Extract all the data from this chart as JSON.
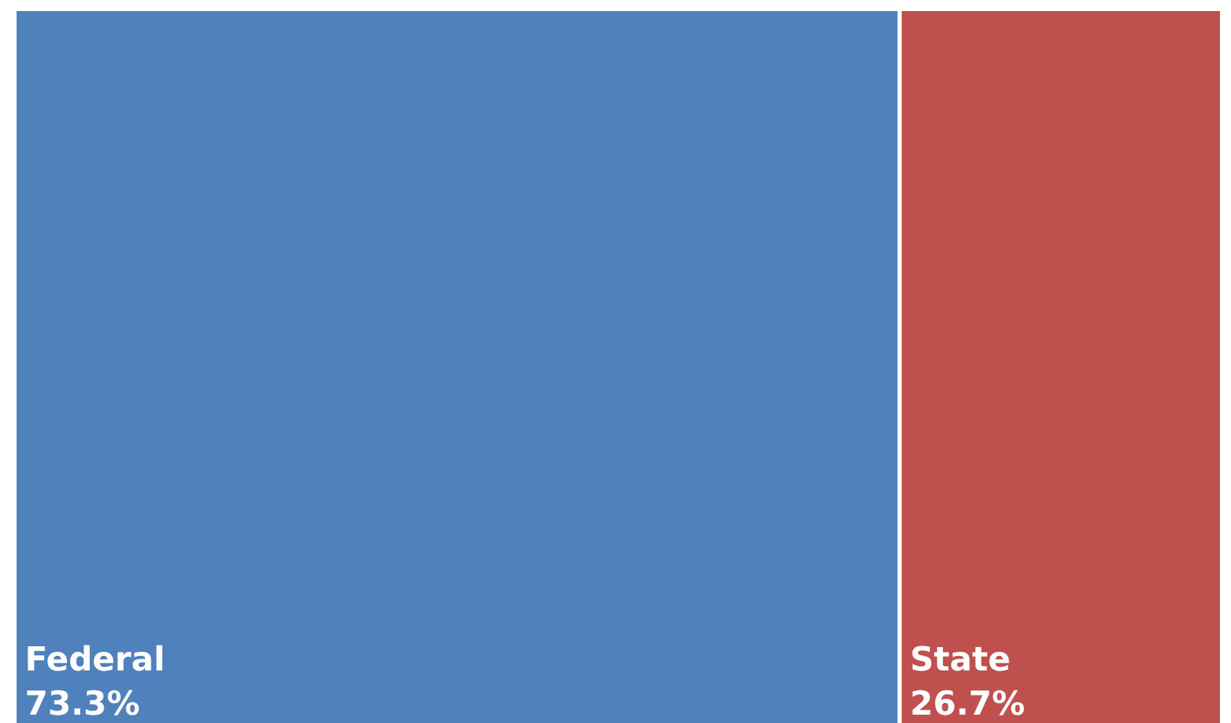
{
  "chart_data": {
    "type": "other",
    "categories": [
      "Federal",
      "State"
    ],
    "values": [
      73.3,
      26.7
    ],
    "value_labels": [
      "73.3%",
      "26.7%"
    ],
    "colors": [
      "#4f81bd",
      "#c0504d"
    ]
  }
}
